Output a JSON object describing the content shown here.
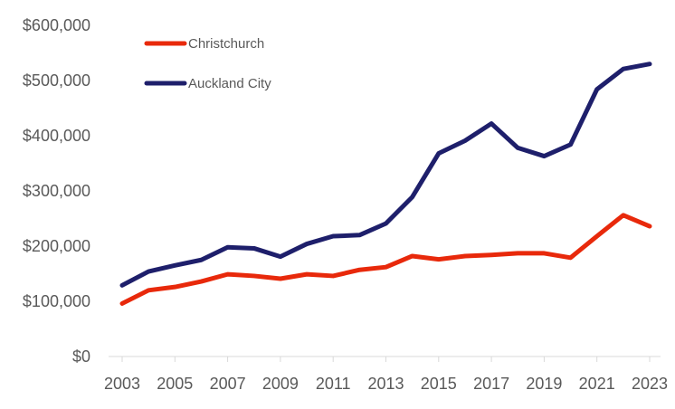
{
  "chart_data": {
    "type": "line",
    "title": "",
    "xlabel": "",
    "ylabel": "",
    "x": [
      2003,
      2004,
      2005,
      2006,
      2007,
      2008,
      2009,
      2010,
      2011,
      2012,
      2013,
      2014,
      2015,
      2016,
      2017,
      2018,
      2019,
      2020,
      2021,
      2022,
      2023
    ],
    "x_tick_labels": [
      "2003",
      "2005",
      "2007",
      "2009",
      "2011",
      "2013",
      "2015",
      "2017",
      "2019",
      "2021",
      "2023"
    ],
    "x_tick_values": [
      2003,
      2005,
      2007,
      2009,
      2011,
      2013,
      2015,
      2017,
      2019,
      2021,
      2023
    ],
    "y_tick_labels": [
      "$0",
      "$100,000",
      "$200,000",
      "$300,000",
      "$400,000",
      "$500,000",
      "$600,000"
    ],
    "y_tick_values": [
      0,
      100000,
      200000,
      300000,
      400000,
      500000,
      600000
    ],
    "ylim": [
      0,
      600000
    ],
    "grid": false,
    "legend_position": "top-left",
    "series": [
      {
        "name": "Christchurch",
        "color": "#e8290b",
        "values": [
          96000,
          120000,
          126000,
          136000,
          149000,
          146000,
          141000,
          149000,
          146000,
          157000,
          162000,
          182000,
          176000,
          182000,
          184000,
          187000,
          187000,
          179000,
          218000,
          256000,
          236000
        ]
      },
      {
        "name": "Auckland City",
        "color": "#1e1f6b",
        "values": [
          129000,
          154000,
          165000,
          175000,
          198000,
          196000,
          181000,
          204000,
          218000,
          220000,
          241000,
          289000,
          368000,
          391000,
          422000,
          378000,
          363000,
          384000,
          484000,
          521000,
          530000
        ]
      }
    ]
  }
}
